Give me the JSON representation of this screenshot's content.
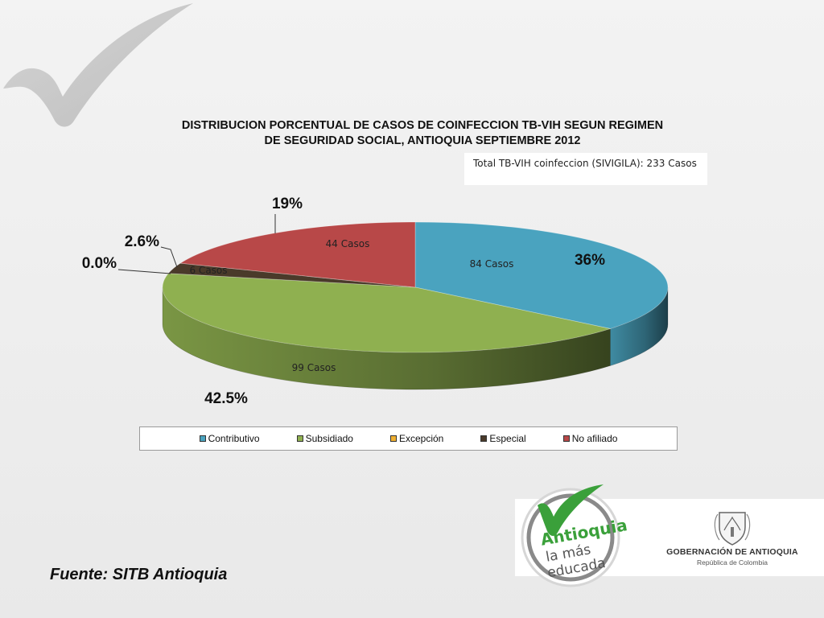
{
  "chart_data": {
    "type": "pie",
    "title_line1": "DISTRIBUCION PORCENTUAL DE CASOS DE COINFECCION TB-VIH SEGUN REGIMEN",
    "title_line2": "DE SEGURIDAD SOCIAL, ANTIOQUIA SEPTIEMBRE 2012",
    "note": "Total TB-VIH coinfeccion (SIVIGILA): 233 Casos",
    "categories": [
      "Contributivo",
      "Subsidiado",
      "Excepción",
      "Especial",
      "No afiliado"
    ],
    "percents": [
      36,
      42.5,
      0.0,
      2.6,
      19
    ],
    "percent_labels": [
      "36%",
      "42.5%",
      "0.0%",
      "2.6%",
      "19%"
    ],
    "case_labels": [
      "84  Casos",
      "99 Casos",
      "",
      "6 Casos",
      "44 Casos"
    ],
    "colors": [
      "#4aa3bf",
      "#8fb050",
      "#f0b030",
      "#4a3a2a",
      "#b84848"
    ],
    "legend_position": "bottom"
  },
  "footer": {
    "source": "Fuente: SITB Antioquia",
    "logo_line1": "Antioquia",
    "logo_line2": "la más",
    "logo_line3": "educada",
    "gob_name": "GOBERNACIÓN DE ANTIOQUIA",
    "gob_sub": "República de Colombia"
  }
}
